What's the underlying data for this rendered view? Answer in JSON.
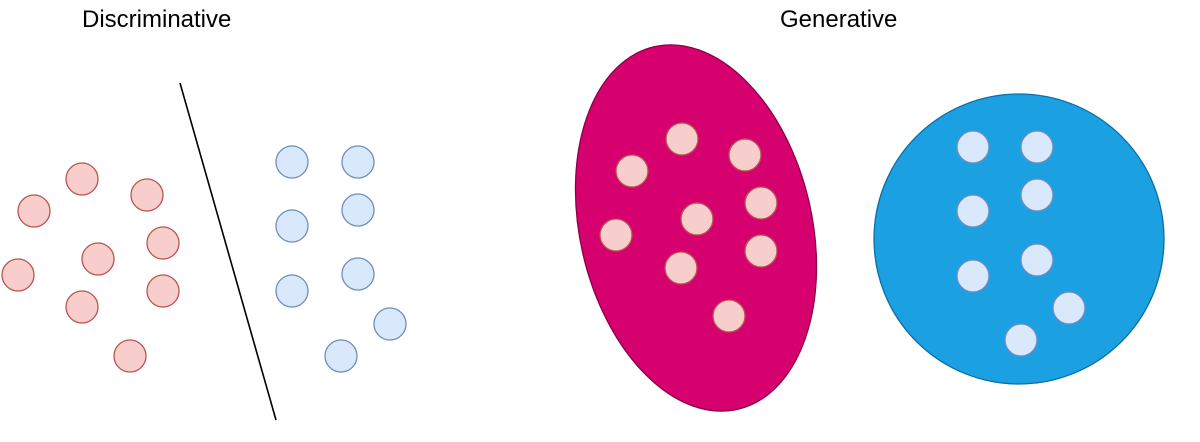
{
  "titles": {
    "left": "Discriminative",
    "right": "Generative"
  },
  "colors": {
    "red_fill": "#f8cecc",
    "red_stroke": "#b85450",
    "blue_fill": "#dae8fc",
    "blue_stroke": "#6c8ebf",
    "magenta_region": "#d6006f",
    "blue_region": "#1ba1e2",
    "line": "#000000"
  }
}
